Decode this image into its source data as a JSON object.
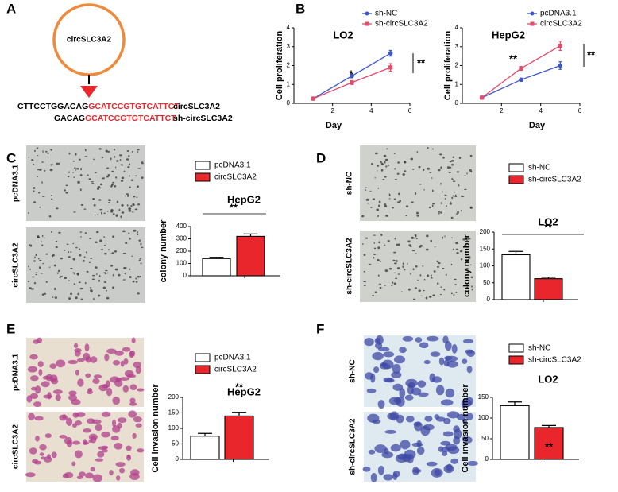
{
  "panel_labels": [
    "A",
    "B",
    "C",
    "D",
    "E",
    "F"
  ],
  "panel_a": {
    "circle_label": "circSLC3A2",
    "sequences": [
      {
        "black": "CTTCCTGGACAG",
        "red": "GCATCCGTGTCATTCT",
        "label": "circSLC3A2"
      },
      {
        "black": "GACAG",
        "red": "GCATCCGTGTCATTCT",
        "label": "sh-circSLC3A2"
      }
    ]
  },
  "image_labels": {
    "C": [
      "pcDNA3.1",
      "circSLC3A2"
    ],
    "D": [
      "sh-NC",
      "sh-circSLC3A2"
    ],
    "E": [
      "pcDNA3.1",
      "circSLC3A2"
    ],
    "F": [
      "sh-NC",
      "sh-circSLC3A2"
    ]
  },
  "chart_data": [
    {
      "type": "line",
      "title": "LO2",
      "xlabel": "Day",
      "ylabel": "Cell proliferation",
      "x": [
        1,
        3,
        5
      ],
      "series": [
        {
          "name": "sh-NC",
          "color": "#3a56c8",
          "values": [
            0.25,
            1.45,
            2.65
          ],
          "errors": [
            0.05,
            0.1,
            0.15
          ]
        },
        {
          "name": "sh-circSLC3A2",
          "color": "#e44a6a",
          "values": [
            0.25,
            1.1,
            1.9
          ],
          "errors": [
            0.05,
            0.1,
            0.2
          ]
        }
      ],
      "xlim": [
        0,
        6
      ],
      "xticks": [
        2,
        4,
        6
      ],
      "ylim": [
        0,
        4
      ],
      "yticks": [
        0,
        1,
        2,
        3,
        4
      ],
      "annotations": [
        "*",
        "**"
      ]
    },
    {
      "type": "line",
      "title": "HepG2",
      "xlabel": "Day",
      "ylabel": "Cell proliferation",
      "x": [
        1,
        3,
        5
      ],
      "series": [
        {
          "name": "pcDNA3.1",
          "color": "#3a56c8",
          "values": [
            0.3,
            1.25,
            2.0
          ],
          "errors": [
            0.05,
            0.08,
            0.2
          ]
        },
        {
          "name": "circSLC3A2",
          "color": "#e44a6a",
          "values": [
            0.3,
            1.85,
            3.05
          ],
          "errors": [
            0.05,
            0.1,
            0.25
          ]
        }
      ],
      "xlim": [
        0,
        6
      ],
      "xticks": [
        2,
        4,
        6
      ],
      "ylim": [
        0,
        4
      ],
      "yticks": [
        0,
        1,
        2,
        3,
        4
      ],
      "annotations": [
        "**",
        "**"
      ]
    },
    {
      "type": "bar",
      "title": "HepG2",
      "ylabel": "colony number",
      "categories": [
        null
      ],
      "series": [
        {
          "name": "pcDNA3.1",
          "color": "#ffffff",
          "values": [
            140
          ],
          "errors": [
            10
          ]
        },
        {
          "name": "circSLC3A2",
          "color": "#e8262b",
          "values": [
            320
          ],
          "errors": [
            20
          ]
        }
      ],
      "ylim": [
        0,
        400
      ],
      "yticks": [
        0,
        100,
        200,
        300,
        400
      ],
      "annotations": [
        "**"
      ]
    },
    {
      "type": "bar",
      "title": "LO2",
      "ylabel": "colony number",
      "categories": [
        null
      ],
      "series": [
        {
          "name": "sh-NC",
          "color": "#ffffff",
          "values": [
            133
          ],
          "errors": [
            10
          ]
        },
        {
          "name": "sh-circSLC3A2",
          "color": "#e8262b",
          "values": [
            62
          ],
          "errors": [
            4
          ]
        }
      ],
      "ylim": [
        0,
        200
      ],
      "yticks": [
        0,
        50,
        100,
        150,
        200
      ],
      "annotations": [
        "**"
      ]
    },
    {
      "type": "bar",
      "title": "HepG2",
      "ylabel": "Cell invasion number",
      "categories": [
        null
      ],
      "series": [
        {
          "name": "pcDNA3.1",
          "color": "#ffffff",
          "values": [
            75
          ],
          "errors": [
            9
          ]
        },
        {
          "name": "circSLC3A2",
          "color": "#e8262b",
          "values": [
            140
          ],
          "errors": [
            12
          ]
        }
      ],
      "ylim": [
        0,
        200
      ],
      "yticks": [
        0,
        50,
        100,
        150,
        200
      ],
      "annotations": [
        "**"
      ]
    },
    {
      "type": "bar",
      "title": "LO2",
      "ylabel": "Cell invasion number",
      "categories": [
        null
      ],
      "series": [
        {
          "name": "sh-NC",
          "color": "#ffffff",
          "values": [
            130
          ],
          "errors": [
            9
          ]
        },
        {
          "name": "sh-circSLC3A2",
          "color": "#e8262b",
          "values": [
            77
          ],
          "errors": [
            5
          ]
        }
      ],
      "ylim": [
        0,
        150
      ],
      "yticks": [
        0,
        50,
        100,
        150
      ],
      "annotations": [
        "**"
      ]
    }
  ]
}
